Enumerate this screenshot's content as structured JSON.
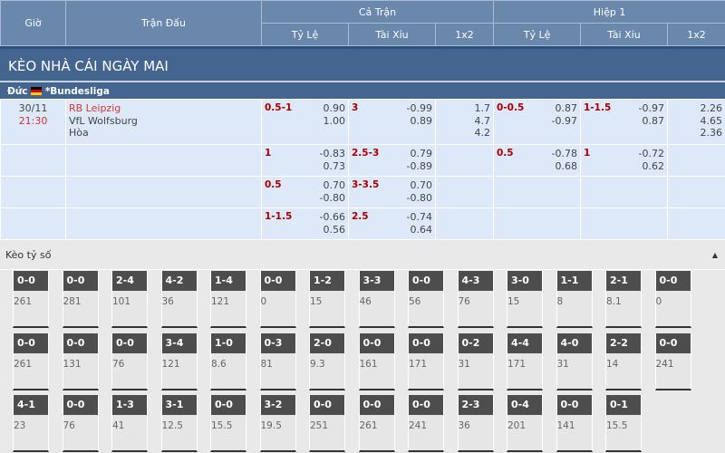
{
  "header": {
    "gio": "Giờ",
    "tran_dau": "Trận Đấu",
    "ca_tran": "Cả Trận",
    "hiep1": "Hiệp 1",
    "sub": [
      "Tỷ Lệ",
      "Tài Xỉu",
      "1x2",
      "Tỷ Lệ",
      "Tài Xỉu",
      "1x2"
    ]
  },
  "title": "KÈO NHÀ CÁI NGÀY MAI",
  "league": {
    "country": "Đức",
    "name": "*Bundesliga",
    "flag": "germany-flag"
  },
  "match": {
    "date": "30/11",
    "time": "21:30",
    "home": "RB Leipzig",
    "away": "VfL Wolfsburg",
    "draw": "Hòa"
  },
  "rows": [
    {
      "ft_hdp": [
        "0.5-1",
        "0.90",
        "1.00"
      ],
      "ft_ou": [
        "3",
        "-0.99",
        "0.89"
      ],
      "ft_1x2": [
        "1.7",
        "4.7",
        "4.2"
      ],
      "h1_hdp": [
        "0-0.5",
        "0.87",
        "-0.97"
      ],
      "h1_ou": [
        "1-1.5",
        "-0.97",
        "0.87"
      ],
      "h1_1x2": [
        "2.26",
        "4.65",
        "2.36"
      ]
    },
    {
      "ft_hdp": [
        "1",
        "-0.83",
        "0.73"
      ],
      "ft_ou": [
        "2.5-3",
        "0.79",
        "-0.89"
      ],
      "ft_1x2": [],
      "h1_hdp": [
        "0.5",
        "-0.78",
        "0.68"
      ],
      "h1_ou": [
        "1",
        "-0.72",
        "0.62"
      ],
      "h1_1x2": []
    },
    {
      "ft_hdp": [
        "0.5",
        "0.70",
        "-0.80"
      ],
      "ft_ou": [
        "3-3.5",
        "0.70",
        "-0.80"
      ],
      "ft_1x2": [],
      "h1_hdp": [],
      "h1_ou": [],
      "h1_1x2": []
    },
    {
      "ft_hdp": [
        "1-1.5",
        "-0.66",
        "0.56"
      ],
      "ft_ou": [
        "2.5",
        "-0.74",
        "0.64"
      ],
      "ft_1x2": [],
      "h1_hdp": [],
      "h1_ou": [],
      "h1_1x2": []
    }
  ],
  "correct_score": {
    "label": "Kèo tỷ số",
    "toggle_icon": "triangle-up-icon",
    "tiles": [
      [
        [
          "0-0",
          "261"
        ],
        [
          "0-0",
          "281"
        ],
        [
          "2-4",
          "101"
        ],
        [
          "4-2",
          "36"
        ],
        [
          "1-4",
          "121"
        ],
        [
          "0-0",
          "0"
        ],
        [
          "1-2",
          "15"
        ],
        [
          "3-3",
          "46"
        ],
        [
          "0-0",
          "56"
        ],
        [
          "4-3",
          "76"
        ],
        [
          "3-0",
          "15"
        ],
        [
          "1-1",
          "8"
        ],
        [
          "2-1",
          "8.1"
        ],
        [
          "0-0",
          "0"
        ]
      ],
      [
        [
          "0-0",
          "261"
        ],
        [
          "0-0",
          "131"
        ],
        [
          "0-0",
          "76"
        ],
        [
          "3-4",
          "121"
        ],
        [
          "1-0",
          "8.6"
        ],
        [
          "0-3",
          "81"
        ],
        [
          "2-0",
          "9.3"
        ],
        [
          "0-0",
          "161"
        ],
        [
          "0-0",
          "171"
        ],
        [
          "0-2",
          "31"
        ],
        [
          "4-4",
          "171"
        ],
        [
          "4-0",
          "31"
        ],
        [
          "2-2",
          "14"
        ],
        [
          "0-0",
          "241"
        ]
      ],
      [
        [
          "4-1",
          "23"
        ],
        [
          "0-0",
          "76"
        ],
        [
          "1-3",
          "41"
        ],
        [
          "3-1",
          "12.5"
        ],
        [
          "0-0",
          "15.5"
        ],
        [
          "3-2",
          "19.5"
        ],
        [
          "0-0",
          "251"
        ],
        [
          "0-0",
          "261"
        ],
        [
          "0-0",
          "241"
        ],
        [
          "2-3",
          "36"
        ],
        [
          "0-4",
          "201"
        ],
        [
          "0-0",
          "141"
        ],
        [
          "0-1",
          "15.5"
        ]
      ]
    ]
  }
}
